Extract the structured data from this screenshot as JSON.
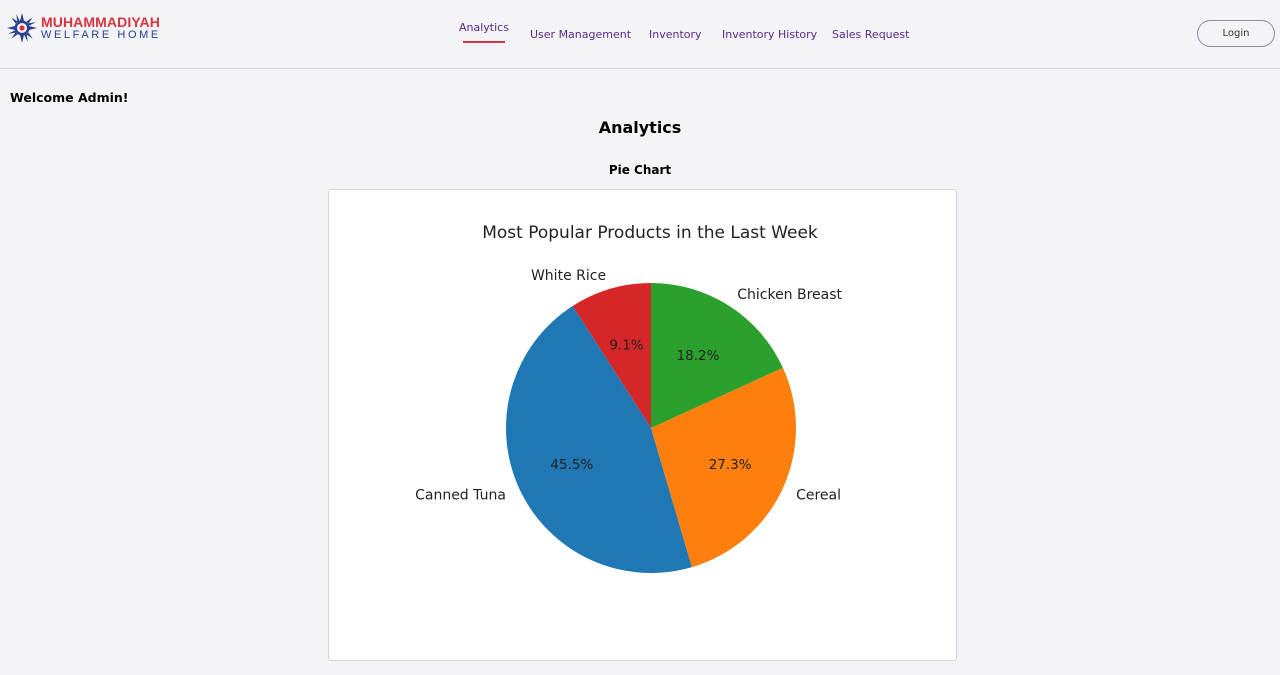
{
  "logo": {
    "line1": "MUHAMMADIYAH",
    "line2": "WELFARE HOME",
    "icon": "sun-emblem-icon"
  },
  "nav": {
    "items": [
      {
        "label": "Analytics",
        "active": true
      },
      {
        "label": "User Management",
        "active": false
      },
      {
        "label": "Inventory",
        "active": false
      },
      {
        "label": "Inventory History",
        "active": false
      },
      {
        "label": "Sales Request",
        "active": false
      }
    ],
    "login_label": "Login"
  },
  "welcome_text": "Welcome Admin!",
  "page_title": "Analytics",
  "chart_section_title": "Pie Chart",
  "colors": {
    "accent": "#d8343c",
    "nav_text": "#5b2a86",
    "brand_blue": "#27408f"
  },
  "chart_data": {
    "type": "pie",
    "title": "Most Popular Products in the Last Week",
    "start_angle_deg": 90,
    "counterclock": true,
    "slices": [
      {
        "label": "White Rice",
        "value": 9.1,
        "pct_label": "9.1%",
        "color": "#d62728"
      },
      {
        "label": "Canned Tuna",
        "value": 45.5,
        "pct_label": "45.5%",
        "color": "#1f77b4"
      },
      {
        "label": "Cereal",
        "value": 27.3,
        "pct_label": "27.3%",
        "color": "#ff7f0e"
      },
      {
        "label": "Chicken Breast",
        "value": 18.2,
        "pct_label": "18.2%",
        "color": "#2ca02c"
      }
    ]
  }
}
